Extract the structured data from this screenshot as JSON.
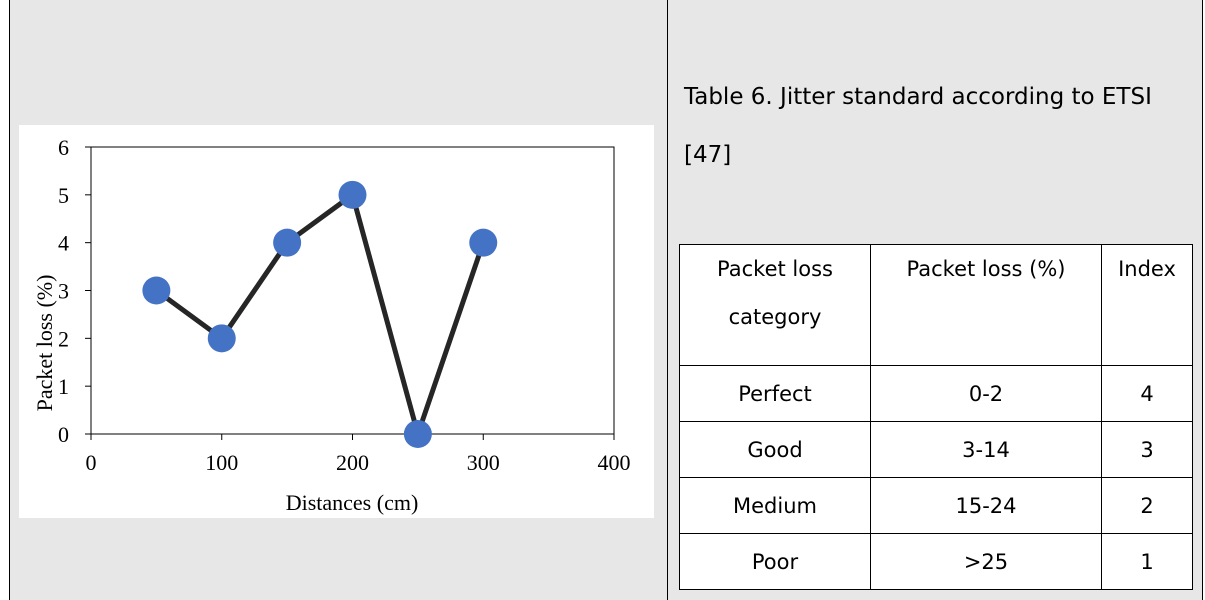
{
  "caption": {
    "text": "Table 6. Jitter standard according to ETSI [47]"
  },
  "table": {
    "headers": [
      "Packet loss category",
      "Packet loss (%)",
      "Index"
    ],
    "rows": [
      [
        "Perfect",
        "0-2",
        "4"
      ],
      [
        "Good",
        "3-14",
        "3"
      ],
      [
        "Medium",
        "15-24",
        "2"
      ],
      [
        "Poor",
        ">25",
        "1"
      ]
    ]
  },
  "chart_data": {
    "type": "line",
    "x": [
      50,
      100,
      150,
      200,
      250,
      300
    ],
    "series": [
      {
        "values": [
          3,
          2,
          4,
          5,
          0,
          4
        ]
      }
    ],
    "xlabel": "Distances (cm)",
    "ylabel": "Packet loss (%)",
    "xlim": [
      0,
      400
    ],
    "ylim": [
      0,
      6
    ],
    "xticks": [
      "0",
      "100",
      "200",
      "300",
      "400"
    ],
    "yticks": [
      "0",
      "1",
      "2",
      "3",
      "4",
      "5",
      "6"
    ],
    "grid": false,
    "line_color": "#262626",
    "marker_color": "#4472c4"
  }
}
